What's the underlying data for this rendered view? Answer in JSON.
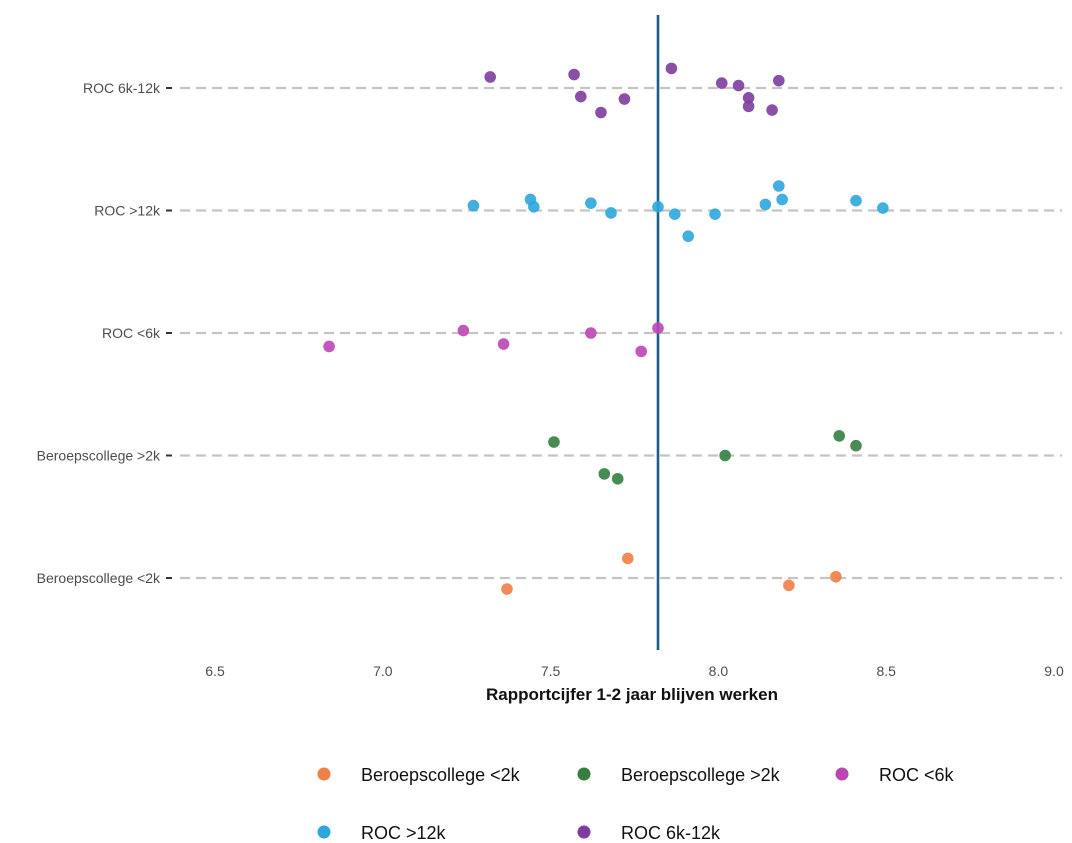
{
  "chart_data": {
    "type": "scatter",
    "xlabel": "Rapportcijfer 1-2 jaar blijven werken",
    "ylabel": "",
    "xlim": [
      6.4,
      9.05
    ],
    "xticks": [
      "6.5",
      "7.0",
      "7.5",
      "8.0",
      "8.5",
      "9.0"
    ],
    "categories": [
      "Beroepscollege <2k",
      "Beroepscollege >2k",
      "ROC <6k",
      "ROC >12k",
      "ROC 6k-12k"
    ],
    "reference_line": {
      "x": 7.82,
      "color": "#1a5f8a"
    },
    "grid": "horizontal dashed",
    "legend_position": "bottom",
    "series": [
      {
        "name": "Beroepscollege <2k",
        "color": "#f07f45",
        "points": [
          {
            "x": 7.37,
            "jitter": -0.09
          },
          {
            "x": 7.73,
            "jitter": 0.16
          },
          {
            "x": 8.21,
            "jitter": -0.06
          },
          {
            "x": 8.35,
            "jitter": 0.01
          }
        ]
      },
      {
        "name": "Beroepscollege >2k",
        "color": "#33803f",
        "points": [
          {
            "x": 7.51,
            "jitter": 0.11
          },
          {
            "x": 7.66,
            "jitter": -0.15
          },
          {
            "x": 7.7,
            "jitter": -0.19
          },
          {
            "x": 8.02,
            "jitter": 0.0
          },
          {
            "x": 8.36,
            "jitter": 0.16
          },
          {
            "x": 8.41,
            "jitter": 0.08
          }
        ]
      },
      {
        "name": "ROC <6k",
        "color": "#bb46b5",
        "points": [
          {
            "x": 6.84,
            "jitter": -0.11
          },
          {
            "x": 7.24,
            "jitter": 0.02
          },
          {
            "x": 7.36,
            "jitter": -0.09
          },
          {
            "x": 7.62,
            "jitter": 0.0
          },
          {
            "x": 7.77,
            "jitter": -0.15
          },
          {
            "x": 7.82,
            "jitter": 0.04
          }
        ]
      },
      {
        "name": "ROC >12k",
        "color": "#2ca6dd",
        "points": [
          {
            "x": 7.27,
            "jitter": 0.04
          },
          {
            "x": 7.44,
            "jitter": 0.09
          },
          {
            "x": 7.45,
            "jitter": 0.03
          },
          {
            "x": 7.62,
            "jitter": 0.06
          },
          {
            "x": 7.68,
            "jitter": -0.02
          },
          {
            "x": 7.82,
            "jitter": 0.03
          },
          {
            "x": 7.87,
            "jitter": -0.03
          },
          {
            "x": 7.91,
            "jitter": -0.21
          },
          {
            "x": 7.99,
            "jitter": -0.03
          },
          {
            "x": 8.14,
            "jitter": 0.05
          },
          {
            "x": 8.18,
            "jitter": 0.2
          },
          {
            "x": 8.19,
            "jitter": 0.09
          },
          {
            "x": 8.41,
            "jitter": 0.08
          },
          {
            "x": 8.49,
            "jitter": 0.02
          }
        ]
      },
      {
        "name": "ROC 6k-12k",
        "color": "#7d3d9e",
        "points": [
          {
            "x": 7.32,
            "jitter": 0.09
          },
          {
            "x": 7.57,
            "jitter": 0.11
          },
          {
            "x": 7.59,
            "jitter": -0.07
          },
          {
            "x": 7.65,
            "jitter": -0.2
          },
          {
            "x": 7.72,
            "jitter": -0.09
          },
          {
            "x": 7.86,
            "jitter": 0.16
          },
          {
            "x": 8.01,
            "jitter": 0.04
          },
          {
            "x": 8.06,
            "jitter": 0.02
          },
          {
            "x": 8.09,
            "jitter": -0.08
          },
          {
            "x": 8.09,
            "jitter": -0.15
          },
          {
            "x": 8.16,
            "jitter": -0.18
          },
          {
            "x": 8.18,
            "jitter": 0.06
          }
        ]
      }
    ]
  }
}
